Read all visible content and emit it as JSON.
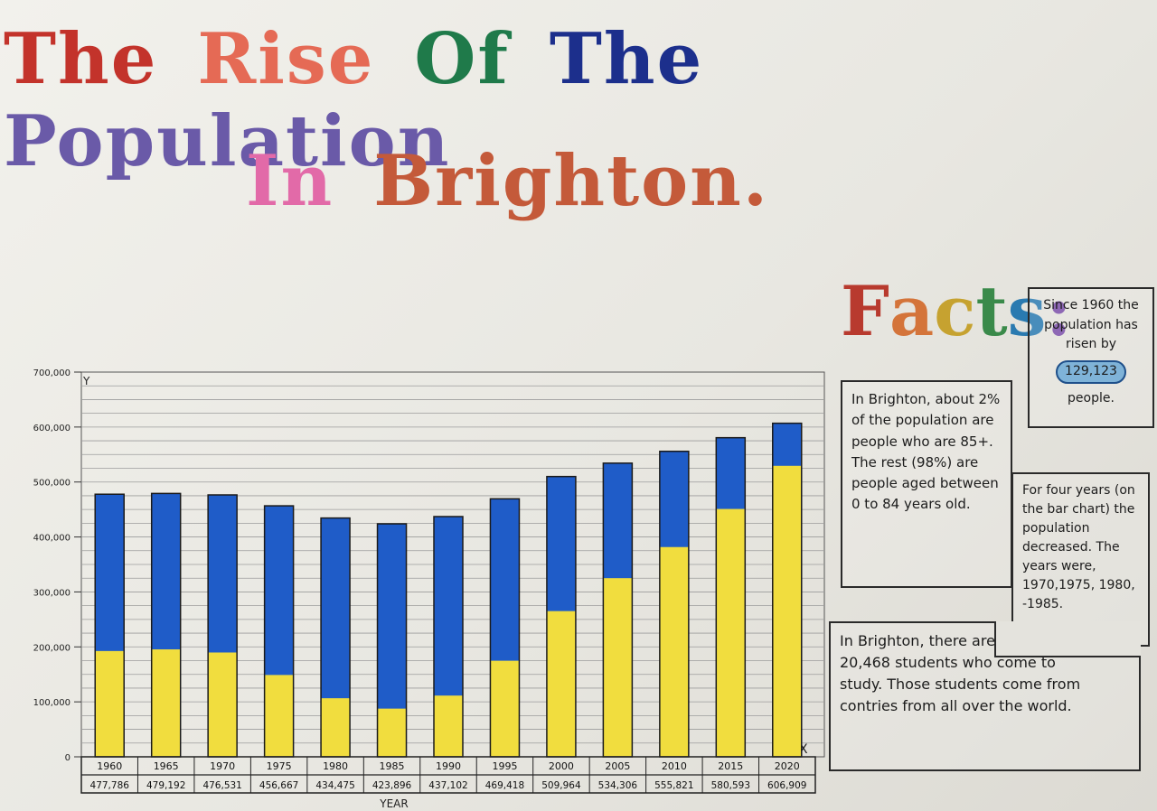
{
  "title": {
    "line1": [
      {
        "word": "The",
        "color": "#c3332b"
      },
      {
        "word": "Rise",
        "color": "#e56a55"
      },
      {
        "word": "Of",
        "color": "#1f7a4a"
      },
      {
        "word": "The",
        "color": "#1c2f8c"
      },
      {
        "word": "Population",
        "color": "#6a5aa8"
      }
    ],
    "line2": [
      {
        "word": "In",
        "color": "#e26aa8"
      },
      {
        "word": "Brighton.",
        "color": "#c45a3a"
      }
    ]
  },
  "facts_heading": {
    "letters": [
      {
        "ch": "F",
        "color": "#b83a2e"
      },
      {
        "ch": "a",
        "color": "#d4743a"
      },
      {
        "ch": "c",
        "color": "#c6a230"
      },
      {
        "ch": "t",
        "color": "#3a8a4a"
      },
      {
        "ch": "s",
        "color": "#2a7ab0"
      },
      {
        "ch": ":",
        "color": "#7b4ea8"
      }
    ]
  },
  "facts": {
    "since": {
      "line1": "Since 1960 the population has risen by",
      "highlight": "129,123",
      "line2": "people."
    },
    "age": "In Brighton, about 2% of the population are people who are 85+. The rest (98%) are people aged between 0 to 84 years old.",
    "decrease": "For four years (on the bar chart) the population decreased. The years were, 1970,1975, 1980, -1985.",
    "students": "In Brighton, there are about 20,468 students who come to study. Those students come from contries from all over the world."
  },
  "chart_data": {
    "type": "bar",
    "categories": [
      "1960",
      "1965",
      "1970",
      "1975",
      "1980",
      "1985",
      "1990",
      "1995",
      "2000",
      "2005",
      "2010",
      "2015",
      "2020"
    ],
    "values": [
      477786,
      479192,
      476531,
      456667,
      434475,
      423896,
      437102,
      469418,
      509964,
      534306,
      555821,
      580593,
      606909
    ],
    "value_labels": [
      "477,786",
      "479,192",
      "476,531",
      "456,667",
      "434,475",
      "423,896",
      "437,102",
      "469,418",
      "509,964",
      "534,306",
      "555,821",
      "580,593",
      "606,909"
    ],
    "ylim": [
      0,
      700000
    ],
    "yticks": [
      0,
      100000,
      200000,
      300000,
      400000,
      500000,
      600000,
      700000
    ],
    "ytick_labels": [
      "0",
      "100,000",
      "200,000",
      "300,000",
      "400,000",
      "500,000",
      "600,000",
      "700,000"
    ],
    "y_axis_letter": "Y",
    "x_axis_letter": "X",
    "xlabel": "YEAR",
    "ylabel": "",
    "grid": true,
    "colors": {
      "bar_top": "#1f5cc8",
      "bar_bottom": "#f1dd3e",
      "outline": "#1a1a1a"
    }
  }
}
